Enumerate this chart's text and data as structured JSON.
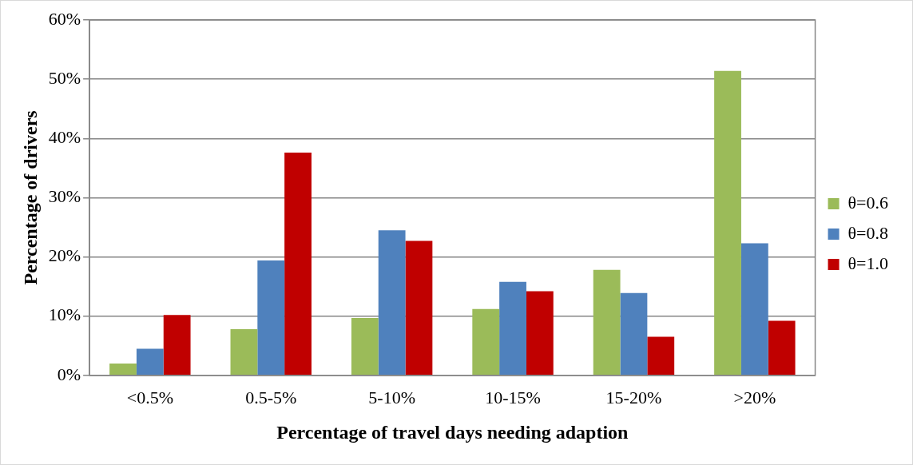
{
  "chart_data": {
    "type": "bar",
    "xlabel": "Percentage of travel days needing adaption",
    "ylabel": "Percentage of drivers",
    "categories": [
      "<0.5%",
      "0.5-5%",
      "5-10%",
      "10-15%",
      "15-20%",
      ">20%"
    ],
    "series": [
      {
        "name": "θ=0.6",
        "color": "#9bbb59",
        "values": [
          2.0,
          7.8,
          9.7,
          11.2,
          17.8,
          51.4
        ]
      },
      {
        "name": "θ=0.8",
        "color": "#4f81bd",
        "values": [
          4.5,
          19.4,
          24.5,
          15.8,
          13.9,
          22.3
        ]
      },
      {
        "name": "θ=1.0",
        "color": "#c00000",
        "values": [
          10.2,
          37.6,
          22.7,
          14.2,
          6.5,
          9.2
        ]
      }
    ],
    "ylim": [
      0,
      60
    ],
    "yticks": [
      {
        "value": 0,
        "label": "0%"
      },
      {
        "value": 10,
        "label": "10%"
      },
      {
        "value": 20,
        "label": "20%"
      },
      {
        "value": 30,
        "label": "30%"
      },
      {
        "value": 40,
        "label": "40%"
      },
      {
        "value": 50,
        "label": "50%"
      },
      {
        "value": 60,
        "label": "60%"
      }
    ],
    "grid": "y",
    "legend": "right"
  }
}
